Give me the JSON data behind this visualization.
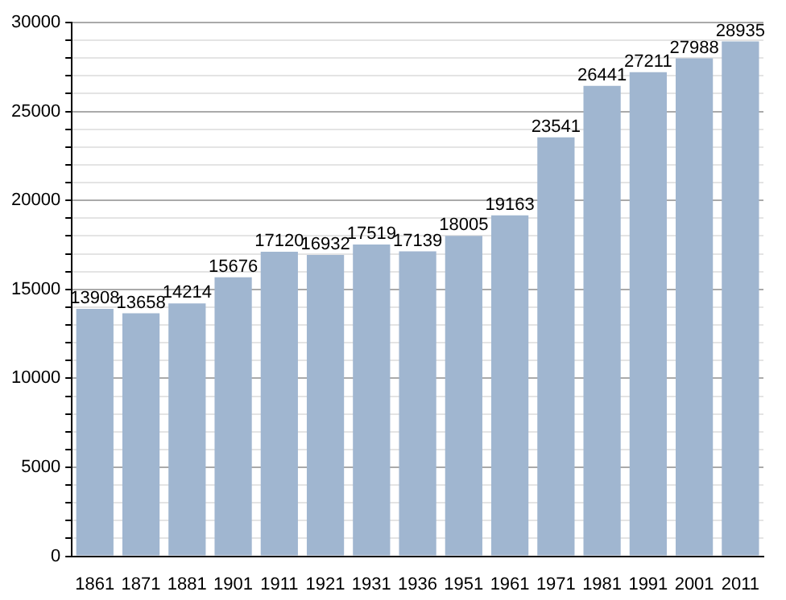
{
  "chart_data": {
    "type": "bar",
    "categories": [
      "1861",
      "1871",
      "1881",
      "1901",
      "1911",
      "1921",
      "1931",
      "1936",
      "1951",
      "1961",
      "1971",
      "1981",
      "1991",
      "2001",
      "2011"
    ],
    "values": [
      13908,
      13658,
      14214,
      15676,
      17120,
      16932,
      17519,
      17139,
      18005,
      19163,
      23541,
      26441,
      27211,
      27988,
      28935
    ],
    "color": "#a0b6d0",
    "data_labels": true,
    "grid": "y",
    "legend": false,
    "ylim": [
      0,
      30000
    ],
    "yticks": [
      0,
      {
        "value": 1000,
        "label": null
      },
      {
        "value": 2000,
        "label": null
      },
      {
        "value": 3000,
        "label": null
      },
      {
        "value": 4000,
        "label": null
      },
      5000,
      {
        "value": 6000,
        "label": null
      },
      {
        "value": 7000,
        "label": null
      },
      {
        "value": 8000,
        "label": null
      },
      {
        "value": 9000,
        "label": null
      },
      10000,
      {
        "value": 11000,
        "label": null
      },
      {
        "value": 12000,
        "label": null
      },
      {
        "value": 13000,
        "label": null
      },
      {
        "value": 14000,
        "label": null
      },
      15000,
      {
        "value": 16000,
        "label": null
      },
      {
        "value": 17000,
        "label": null
      },
      {
        "value": 18000,
        "label": null
      },
      {
        "value": 19000,
        "label": null
      },
      20000,
      {
        "value": 21000,
        "label": null
      },
      {
        "value": 22000,
        "label": null
      },
      {
        "value": 23000,
        "label": null
      },
      {
        "value": 24000,
        "label": null
      },
      25000,
      {
        "value": 26000,
        "label": null
      },
      {
        "value": 27000,
        "label": null
      },
      {
        "value": 28000,
        "label": null
      },
      {
        "value": 29000,
        "label": null
      },
      30000
    ]
  }
}
